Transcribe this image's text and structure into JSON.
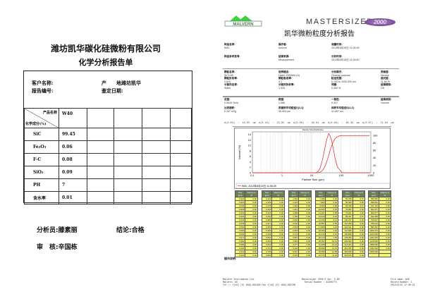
{
  "left": {
    "company": "潍坊凯华碳化硅微粉有限公司",
    "title": "化学分析报告单",
    "customer_label": "客户名称:",
    "origin_label": "产　　地:",
    "origin_value": "潍坊凯华",
    "report_no_label": "报告编号:",
    "date_label": "鉴定日期:",
    "header_product": "产品名称",
    "header_chem": "化学成分(%)",
    "product": "W40",
    "rows": [
      {
        "name": "SiC",
        "value": "99.45"
      },
      {
        "name": "Fe₂O₃",
        "value": "0.06"
      },
      {
        "name": "F-C",
        "value": "0.08"
      },
      {
        "name": "SiO₂",
        "value": "0.09"
      },
      {
        "name": "PH",
        "value": "7"
      },
      {
        "name": "含水率",
        "value": "0.01"
      }
    ],
    "analyst_label": "分析员:",
    "analyst": "滕素丽",
    "conclusion_label": "结论:",
    "conclusion": "合格",
    "auditor_label": "审　核:",
    "auditor": "辛国栋"
  },
  "right": {
    "logo_text": "MALVERN",
    "brand": "MASTERSIZER",
    "brand_badge": "2000",
    "title": "凯华微粉粒度分析报告",
    "info": [
      {
        "label": "样品名称:",
        "value": "W40"
      },
      {
        "label": "操作者:",
        "value": "horizon"
      },
      {
        "label": "测量时间:",
        "value": "2013年8月15日 11:06:39"
      },
      {
        "label": "样品参考批号:",
        "value": ""
      },
      {
        "label": "结果来源:",
        "value": "Measurement"
      },
      {
        "label": "分析时间:",
        "value": "2013年8月15日 11:06:40"
      }
    ],
    "params": [
      {
        "label": "颗粒名称:",
        "value": "SiC0.65"
      },
      {
        "label": "进样器名:",
        "value": "Hydro 2000MU (A)"
      },
      {
        "label": "分析模式:",
        "value": "General purpose"
      },
      {
        "label": "灵敏度:",
        "value": "Normal"
      },
      {
        "label": "颗粒折射率:",
        "value": "2.610"
      },
      {
        "label": "颗粒吸收率:",
        "value": "0.1"
      },
      {
        "label": "粒径范围:",
        "value": "0.100   to   1000.000   um"
      },
      {
        "label": "遮光度:",
        "value": "11.68    %"
      },
      {
        "label": "分散剂名称:",
        "value": "Water"
      },
      {
        "label": "分散剂折射率:",
        "value": "1.330"
      },
      {
        "label": "残差:",
        "value": "0.469    %"
      },
      {
        "label": "结果模拟:",
        "value": "Off"
      },
      {
        "label": "浓度:",
        "value": "0.0816    %Vol"
      },
      {
        "label": "跨度:",
        "value": "1.086"
      },
      {
        "label": "一致性:",
        "value": "0.337"
      },
      {
        "label": "结果类别:",
        "value": "Volume"
      },
      {
        "label": "比表面积:",
        "value": "0.167    m²/g"
      },
      {
        "label": "表面积平均粒径D[3,2]:",
        "value": "35.904    um"
      },
      {
        "label": "体积平均粒径D[4,3]:",
        "value": "41.897    um"
      }
    ],
    "d_values": "d(0.03) : 15.55 um    d(0.10) : 22.95 um    d(0.50) : 39.01 um    d(0.90) : 65.32 um    d(0.97) : 71.64 um",
    "chart": {
      "title": "Particle Size Distribution",
      "xlabel": "Particle Size (µm)",
      "ylabel": "Volume (%)",
      "x_ticks": [
        "0.1",
        "1",
        "10",
        "100",
        "1000"
      ],
      "y_left_ticks": [
        "0",
        "2",
        "4",
        "6",
        "8",
        "10",
        "12",
        "14"
      ],
      "y_right_ticks": [
        "0",
        "20",
        "40",
        "60",
        "80",
        "100"
      ],
      "legend": "W40, 2013年8月15日 11:06:39",
      "line_color": "#e02020"
    },
    "table_headers": [
      "Size (µm)",
      "Volume In %"
    ],
    "sizes": [
      "0.020",
      "0.022",
      "0.025",
      "0.028",
      "0.032",
      "0.036",
      "0.040",
      "0.045",
      "0.050",
      "0.056",
      "0.063",
      "0.071",
      "0.080",
      "0.089",
      "0.100",
      "0.112",
      "0.126",
      "0.142",
      "0.159",
      "0.178",
      "0.200",
      "0.224",
      "0.252",
      "0.283",
      "0.317",
      "0.356",
      "0.399",
      "0.448",
      "0.502",
      "0.564",
      "0.632",
      "0.710",
      "0.796",
      "0.893",
      "1.002",
      "1.125",
      "1.262",
      "1.416",
      "1.589",
      "1.783",
      "2.000",
      "2.244",
      "2.518",
      "2.825",
      "3.170",
      "3.557",
      "3.991",
      "4.477",
      "5.024",
      "5.637",
      "6.325",
      "7.096",
      "7.962",
      "8.934",
      "10.024",
      "11.247",
      "12.619",
      "14.159",
      "15.887",
      "17.825",
      "20.000",
      "22.440",
      "25.179",
      "28.251",
      "31.698",
      "35.566",
      "39.905",
      "44.774",
      "50.238",
      "56.368",
      "63.246",
      "70.963",
      "79.621",
      "89.337",
      "100.237",
      "112.468",
      "126.191",
      "141.589",
      "158.866",
      "178.250",
      "200.000",
      "224.404",
      "251.785",
      "282.508",
      "316.979",
      "355.656",
      "399.052",
      "447.744",
      "502.377",
      "563.677",
      "632.456",
      "709.627",
      "796.214",
      "893.367",
      "1002.374",
      "1124.683",
      "1261.915",
      "1415.892",
      "1588.656",
      "1782.502",
      "2000.000"
    ],
    "volumes": [
      "0.00",
      "0.00",
      "0.00",
      "0.00",
      "0.00",
      "0.00",
      "0.00",
      "0.00",
      "0.00",
      "0.00",
      "0.00",
      "0.00",
      "0.00",
      "0.00",
      "0.00",
      "0.00",
      "0.00",
      "0.00",
      "0.00",
      "0.00",
      "0.00",
      "0.00",
      "0.00",
      "0.00",
      "0.00",
      "0.00",
      "0.00",
      "0.00",
      "0.00",
      "0.00",
      "0.00",
      "0.00",
      "0.00",
      "0.00",
      "0.00",
      "0.00",
      "0.00",
      "0.00",
      "0.00",
      "0.00",
      "0.00",
      "0.00",
      "0.00",
      "0.00",
      "0.00",
      "0.00",
      "0.00",
      "0.00",
      "0.00",
      "0.00",
      "0.00",
      "0.00",
      "0.00",
      "0.00",
      "0.00",
      "0.00",
      "0.01",
      "0.14",
      "0.56",
      "1.43",
      "2.92",
      "5.01",
      "7.55",
      "10.12",
      "12.16",
      "13.70",
      "12.88",
      "11.20",
      "8.70",
      "5.96",
      "3.67",
      "2.02",
      "1.30",
      "0.67",
      "0.00",
      "0.00",
      "0.00",
      "0.00",
      "0.00",
      "0.00",
      "0.00",
      "0.00",
      "0.00",
      "0.00",
      "0.00",
      "0.00",
      "0.00",
      "0.00",
      "0.00",
      "0.00",
      "0.00",
      "0.00",
      "0.00",
      "0.00",
      "0.00",
      "0.00",
      "0.00",
      "0.00",
      "0.00",
      "0.00",
      ""
    ],
    "notes_label": "操作说明:",
    "footer_left": [
      "Malvern Instruments Ltd.",
      "Malvern, UK",
      "Tel := +[44] (0) 1684-892456 Fax +[44] (0) 1684-892789"
    ],
    "footer_mid": [
      "Mastersizer 2000 E Ver. 5.60",
      "Serial Number : 34200774"
    ],
    "footer_right": [
      "File name: W40",
      "Record Number: 1",
      "2013/8/15 17:40:31"
    ]
  }
}
